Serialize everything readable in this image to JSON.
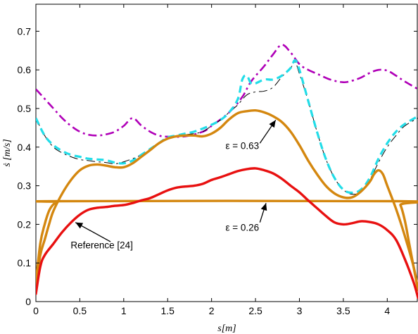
{
  "chart_data": {
    "type": "line",
    "title": "",
    "xlabel": "s[m]",
    "ylabel": "ṡ [m/s]",
    "xlim": [
      0,
      4.35
    ],
    "ylim": [
      0,
      0.77
    ],
    "xticks": [
      0,
      0.5,
      1,
      1.5,
      2,
      2.5,
      3,
      3.5,
      4
    ],
    "xtick_labels": [
      "0",
      "0.5",
      "1",
      "1.5",
      "2",
      "2.5",
      "3",
      "3.5",
      "4"
    ],
    "yticks": [
      0,
      0.1,
      0.2,
      0.3,
      0.4,
      0.5,
      0.6,
      0.7
    ],
    "ytick_labels": [
      "0",
      "0.1",
      "0.2",
      "0.3",
      "0.4",
      "0.5",
      "0.6",
      "0.7"
    ],
    "grid": false,
    "legend": "none",
    "series": [
      {
        "style": "dashdot",
        "color": "#b000b8",
        "width": 2.6,
        "points": [
          [
            0,
            0.55
          ],
          [
            0.1,
            0.525
          ],
          [
            0.2,
            0.5
          ],
          [
            0.3,
            0.475
          ],
          [
            0.4,
            0.455
          ],
          [
            0.5,
            0.44
          ],
          [
            0.6,
            0.432
          ],
          [
            0.7,
            0.43
          ],
          [
            0.8,
            0.433
          ],
          [
            0.9,
            0.44
          ],
          [
            1.0,
            0.455
          ],
          [
            1.1,
            0.475
          ],
          [
            1.2,
            0.456
          ],
          [
            1.3,
            0.44
          ],
          [
            1.4,
            0.43
          ],
          [
            1.5,
            0.427
          ],
          [
            1.7,
            0.428
          ],
          [
            1.9,
            0.44
          ],
          [
            2.0,
            0.455
          ],
          [
            2.2,
            0.49
          ],
          [
            2.35,
            0.53
          ],
          [
            2.45,
            0.57
          ],
          [
            2.6,
            0.61
          ],
          [
            2.7,
            0.64
          ],
          [
            2.8,
            0.665
          ],
          [
            2.9,
            0.645
          ],
          [
            3.0,
            0.615
          ],
          [
            3.1,
            0.6
          ],
          [
            3.2,
            0.59
          ],
          [
            3.35,
            0.575
          ],
          [
            3.5,
            0.568
          ],
          [
            3.6,
            0.572
          ],
          [
            3.7,
            0.58
          ],
          [
            3.8,
            0.592
          ],
          [
            3.9,
            0.6
          ],
          [
            4.0,
            0.598
          ],
          [
            4.1,
            0.585
          ],
          [
            4.2,
            0.57
          ],
          [
            4.35,
            0.55
          ]
        ]
      },
      {
        "style": "dashdot",
        "color": "#000000",
        "width": 1.0,
        "points": [
          [
            0,
            0.475
          ],
          [
            0.1,
            0.43
          ],
          [
            0.2,
            0.4
          ],
          [
            0.3,
            0.385
          ],
          [
            0.4,
            0.375
          ],
          [
            0.5,
            0.368
          ],
          [
            0.6,
            0.365
          ],
          [
            0.7,
            0.362
          ],
          [
            0.8,
            0.36
          ],
          [
            0.9,
            0.357
          ],
          [
            1.0,
            0.362
          ],
          [
            1.2,
            0.38
          ],
          [
            1.4,
            0.41
          ],
          [
            1.5,
            0.42
          ],
          [
            1.6,
            0.428
          ],
          [
            1.7,
            0.432
          ],
          [
            1.8,
            0.435
          ],
          [
            1.9,
            0.44
          ],
          [
            2.0,
            0.455
          ],
          [
            2.1,
            0.47
          ],
          [
            2.2,
            0.49
          ],
          [
            2.3,
            0.51
          ],
          [
            2.4,
            0.535
          ],
          [
            2.5,
            0.543
          ],
          [
            2.6,
            0.545
          ],
          [
            2.7,
            0.555
          ],
          [
            2.8,
            0.582
          ],
          [
            2.9,
            0.605
          ],
          [
            2.95,
            0.62
          ],
          [
            3.0,
            0.59
          ],
          [
            3.1,
            0.52
          ],
          [
            3.2,
            0.44
          ],
          [
            3.3,
            0.37
          ],
          [
            3.4,
            0.32
          ],
          [
            3.5,
            0.29
          ],
          [
            3.6,
            0.278
          ],
          [
            3.7,
            0.285
          ],
          [
            3.8,
            0.315
          ],
          [
            3.9,
            0.36
          ],
          [
            4.0,
            0.4
          ],
          [
            4.1,
            0.43
          ],
          [
            4.2,
            0.455
          ],
          [
            4.35,
            0.475
          ]
        ]
      },
      {
        "style": "dashed",
        "color": "#22dde8",
        "width": 3.2,
        "points": [
          [
            0,
            0.475
          ],
          [
            0.1,
            0.43
          ],
          [
            0.2,
            0.405
          ],
          [
            0.3,
            0.39
          ],
          [
            0.4,
            0.38
          ],
          [
            0.5,
            0.375
          ],
          [
            0.6,
            0.37
          ],
          [
            0.7,
            0.368
          ],
          [
            0.8,
            0.366
          ],
          [
            0.9,
            0.36
          ],
          [
            1.0,
            0.358
          ],
          [
            1.1,
            0.365
          ],
          [
            1.2,
            0.38
          ],
          [
            1.3,
            0.395
          ],
          [
            1.4,
            0.41
          ],
          [
            1.5,
            0.425
          ],
          [
            1.6,
            0.43
          ],
          [
            1.7,
            0.435
          ],
          [
            1.8,
            0.44
          ],
          [
            1.9,
            0.448
          ],
          [
            2.0,
            0.458
          ],
          [
            2.1,
            0.47
          ],
          [
            2.2,
            0.49
          ],
          [
            2.3,
            0.525
          ],
          [
            2.35,
            0.575
          ],
          [
            2.4,
            0.585
          ],
          [
            2.45,
            0.565
          ],
          [
            2.5,
            0.565
          ],
          [
            2.6,
            0.575
          ],
          [
            2.7,
            0.575
          ],
          [
            2.8,
            0.585
          ],
          [
            2.9,
            0.605
          ],
          [
            2.95,
            0.625
          ],
          [
            3.0,
            0.6
          ],
          [
            3.1,
            0.52
          ],
          [
            3.2,
            0.44
          ],
          [
            3.3,
            0.37
          ],
          [
            3.4,
            0.32
          ],
          [
            3.5,
            0.29
          ],
          [
            3.6,
            0.282
          ],
          [
            3.7,
            0.29
          ],
          [
            3.8,
            0.32
          ],
          [
            3.9,
            0.37
          ],
          [
            4.0,
            0.41
          ],
          [
            4.1,
            0.44
          ],
          [
            4.2,
            0.46
          ],
          [
            4.35,
            0.48
          ]
        ]
      },
      {
        "style": "solid",
        "color": "#d4870f",
        "width": 3.4,
        "points": [
          [
            0,
            0.04
          ],
          [
            0.05,
            0.12
          ],
          [
            0.1,
            0.16
          ],
          [
            0.15,
            0.2
          ],
          [
            0.2,
            0.235
          ],
          [
            0.3,
            0.28
          ],
          [
            0.4,
            0.315
          ],
          [
            0.5,
            0.34
          ],
          [
            0.6,
            0.352
          ],
          [
            0.7,
            0.355
          ],
          [
            0.8,
            0.352
          ],
          [
            0.9,
            0.348
          ],
          [
            1.0,
            0.348
          ],
          [
            1.1,
            0.358
          ],
          [
            1.2,
            0.375
          ],
          [
            1.3,
            0.392
          ],
          [
            1.4,
            0.41
          ],
          [
            1.5,
            0.422
          ],
          [
            1.6,
            0.428
          ],
          [
            1.7,
            0.43
          ],
          [
            1.8,
            0.43
          ],
          [
            1.9,
            0.428
          ],
          [
            2.0,
            0.435
          ],
          [
            2.1,
            0.45
          ],
          [
            2.2,
            0.472
          ],
          [
            2.3,
            0.488
          ],
          [
            2.4,
            0.493
          ],
          [
            2.5,
            0.495
          ],
          [
            2.6,
            0.49
          ],
          [
            2.7,
            0.48
          ],
          [
            2.8,
            0.465
          ],
          [
            2.9,
            0.44
          ],
          [
            3.0,
            0.405
          ],
          [
            3.1,
            0.365
          ],
          [
            3.2,
            0.33
          ],
          [
            3.3,
            0.3
          ],
          [
            3.4,
            0.28
          ],
          [
            3.5,
            0.27
          ],
          [
            3.6,
            0.27
          ],
          [
            3.7,
            0.285
          ],
          [
            3.8,
            0.31
          ],
          [
            3.85,
            0.33
          ],
          [
            3.9,
            0.34
          ],
          [
            3.95,
            0.33
          ],
          [
            4.0,
            0.3
          ],
          [
            4.1,
            0.24
          ],
          [
            4.2,
            0.17
          ],
          [
            4.3,
            0.09
          ],
          [
            4.35,
            0.03
          ]
        ]
      },
      {
        "style": "solid",
        "color": "#d4870f",
        "width": 3.4,
        "points": [
          [
            0,
            0.05
          ],
          [
            0.05,
            0.15
          ],
          [
            0.1,
            0.2
          ],
          [
            0.15,
            0.235
          ],
          [
            0.2,
            0.252
          ],
          [
            0.25,
            0.258
          ],
          [
            0.3,
            0.26
          ],
          [
            4.1,
            0.26
          ],
          [
            4.15,
            0.25
          ],
          [
            4.2,
            0.21
          ],
          [
            4.25,
            0.15
          ],
          [
            4.3,
            0.09
          ],
          [
            4.35,
            0.03
          ]
        ]
      },
      {
        "style": "solid",
        "color": "#e81010",
        "width": 3.4,
        "points": [
          [
            0,
            0.02
          ],
          [
            0.05,
            0.09
          ],
          [
            0.1,
            0.12
          ],
          [
            0.2,
            0.15
          ],
          [
            0.3,
            0.18
          ],
          [
            0.4,
            0.205
          ],
          [
            0.5,
            0.225
          ],
          [
            0.6,
            0.238
          ],
          [
            0.7,
            0.243
          ],
          [
            0.8,
            0.245
          ],
          [
            0.9,
            0.248
          ],
          [
            1.0,
            0.25
          ],
          [
            1.1,
            0.255
          ],
          [
            1.2,
            0.262
          ],
          [
            1.3,
            0.268
          ],
          [
            1.4,
            0.278
          ],
          [
            1.5,
            0.288
          ],
          [
            1.6,
            0.295
          ],
          [
            1.7,
            0.298
          ],
          [
            1.8,
            0.3
          ],
          [
            1.9,
            0.305
          ],
          [
            2.0,
            0.315
          ],
          [
            2.1,
            0.322
          ],
          [
            2.2,
            0.33
          ],
          [
            2.3,
            0.338
          ],
          [
            2.4,
            0.343
          ],
          [
            2.5,
            0.345
          ],
          [
            2.6,
            0.34
          ],
          [
            2.7,
            0.332
          ],
          [
            2.8,
            0.318
          ],
          [
            2.9,
            0.3
          ],
          [
            3.0,
            0.283
          ],
          [
            3.1,
            0.262
          ],
          [
            3.2,
            0.242
          ],
          [
            3.3,
            0.222
          ],
          [
            3.4,
            0.205
          ],
          [
            3.5,
            0.2
          ],
          [
            3.6,
            0.203
          ],
          [
            3.7,
            0.208
          ],
          [
            3.8,
            0.206
          ],
          [
            3.9,
            0.2
          ],
          [
            4.0,
            0.185
          ],
          [
            4.1,
            0.16
          ],
          [
            4.2,
            0.11
          ],
          [
            4.3,
            0.05
          ],
          [
            4.35,
            0.01
          ]
        ]
      }
    ],
    "annotations": [
      {
        "text": "ε = 0.63",
        "label_at": [
          2.35,
          0.395
        ],
        "arrow_from": [
          2.55,
          0.41
        ],
        "arrow_to": [
          2.73,
          0.47
        ]
      },
      {
        "text": "ε = 0.26",
        "label_at": [
          2.35,
          0.183
        ],
        "arrow_from": [
          2.55,
          0.205
        ],
        "arrow_to": [
          2.62,
          0.255
        ]
      },
      {
        "text": "Reference [24]",
        "label_at": [
          0.75,
          0.138
        ],
        "arrow_from": [
          0.85,
          0.155
        ],
        "arrow_to": [
          0.45,
          0.205
        ]
      }
    ]
  }
}
